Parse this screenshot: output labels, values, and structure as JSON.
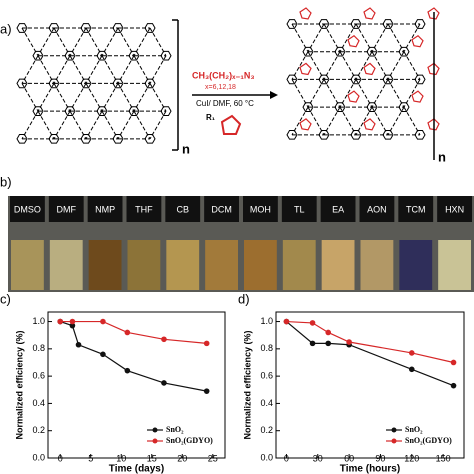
{
  "panel_a": {
    "label": "a)",
    "repeat_left": "n",
    "reagent": "CH₃(CH₂)ₓ₋₁N₃",
    "condition_x": "x=6,12,18",
    "condition": "CuI/ DMF, 60 °C",
    "substituent": "R₁",
    "repeat_right": "n"
  },
  "panel_b": {
    "label": "b)",
    "solvents": [
      "DMSO",
      "DMF",
      "NMP",
      "THF",
      "CB",
      "DCM",
      "MOH",
      "TL",
      "EA",
      "AON",
      "TCM",
      "HXN"
    ]
  },
  "chart_data": [
    {
      "type": "line",
      "panel": "c)",
      "xlabel": "Time (days)",
      "ylabel": "Normalized efficiency (%)",
      "xlim": [
        -2,
        27
      ],
      "xticks": [
        0,
        5,
        10,
        15,
        20,
        25
      ],
      "ylim": [
        0,
        1.07
      ],
      "yticks": [
        {
          "value": 0,
          "label": "0.0"
        },
        0.2,
        0.4,
        0.6,
        0.8,
        {
          "value": 1,
          "label": "1.0"
        }
      ],
      "legend": "lower-right",
      "series": [
        {
          "name": "SnO₂",
          "color": "#111111",
          "x": [
            0,
            2,
            3,
            7,
            11,
            17,
            24
          ],
          "values": [
            1.0,
            0.97,
            0.83,
            0.76,
            0.64,
            0.55,
            0.49
          ]
        },
        {
          "name": "SnO₂(GDYO)",
          "color": "#d62728",
          "x": [
            0,
            2,
            7,
            11,
            17,
            24
          ],
          "values": [
            1.0,
            1.0,
            1.0,
            0.92,
            0.87,
            0.84
          ]
        }
      ]
    },
    {
      "type": "line",
      "panel": "d)",
      "xlabel": "Time (hours)",
      "ylabel": "Normalized efficiency (%)",
      "xlim": [
        -10,
        170
      ],
      "xticks": [
        0,
        30,
        60,
        90,
        120,
        150
      ],
      "ylim": [
        0,
        1.07
      ],
      "yticks": [
        {
          "value": 0,
          "label": "0.0"
        },
        0.2,
        0.4,
        0.6,
        0.8,
        {
          "value": 1,
          "label": "1.0"
        }
      ],
      "legend": "lower-right",
      "series": [
        {
          "name": "SnO₂",
          "color": "#111111",
          "x": [
            0,
            25,
            40,
            60,
            120,
            160
          ],
          "values": [
            1.0,
            0.84,
            0.84,
            0.83,
            0.65,
            0.53
          ]
        },
        {
          "name": "SnO₂(GDYO)",
          "color": "#d62728",
          "x": [
            0,
            25,
            40,
            60,
            120,
            160
          ],
          "values": [
            1.0,
            0.99,
            0.92,
            0.85,
            0.77,
            0.7
          ]
        }
      ]
    }
  ]
}
